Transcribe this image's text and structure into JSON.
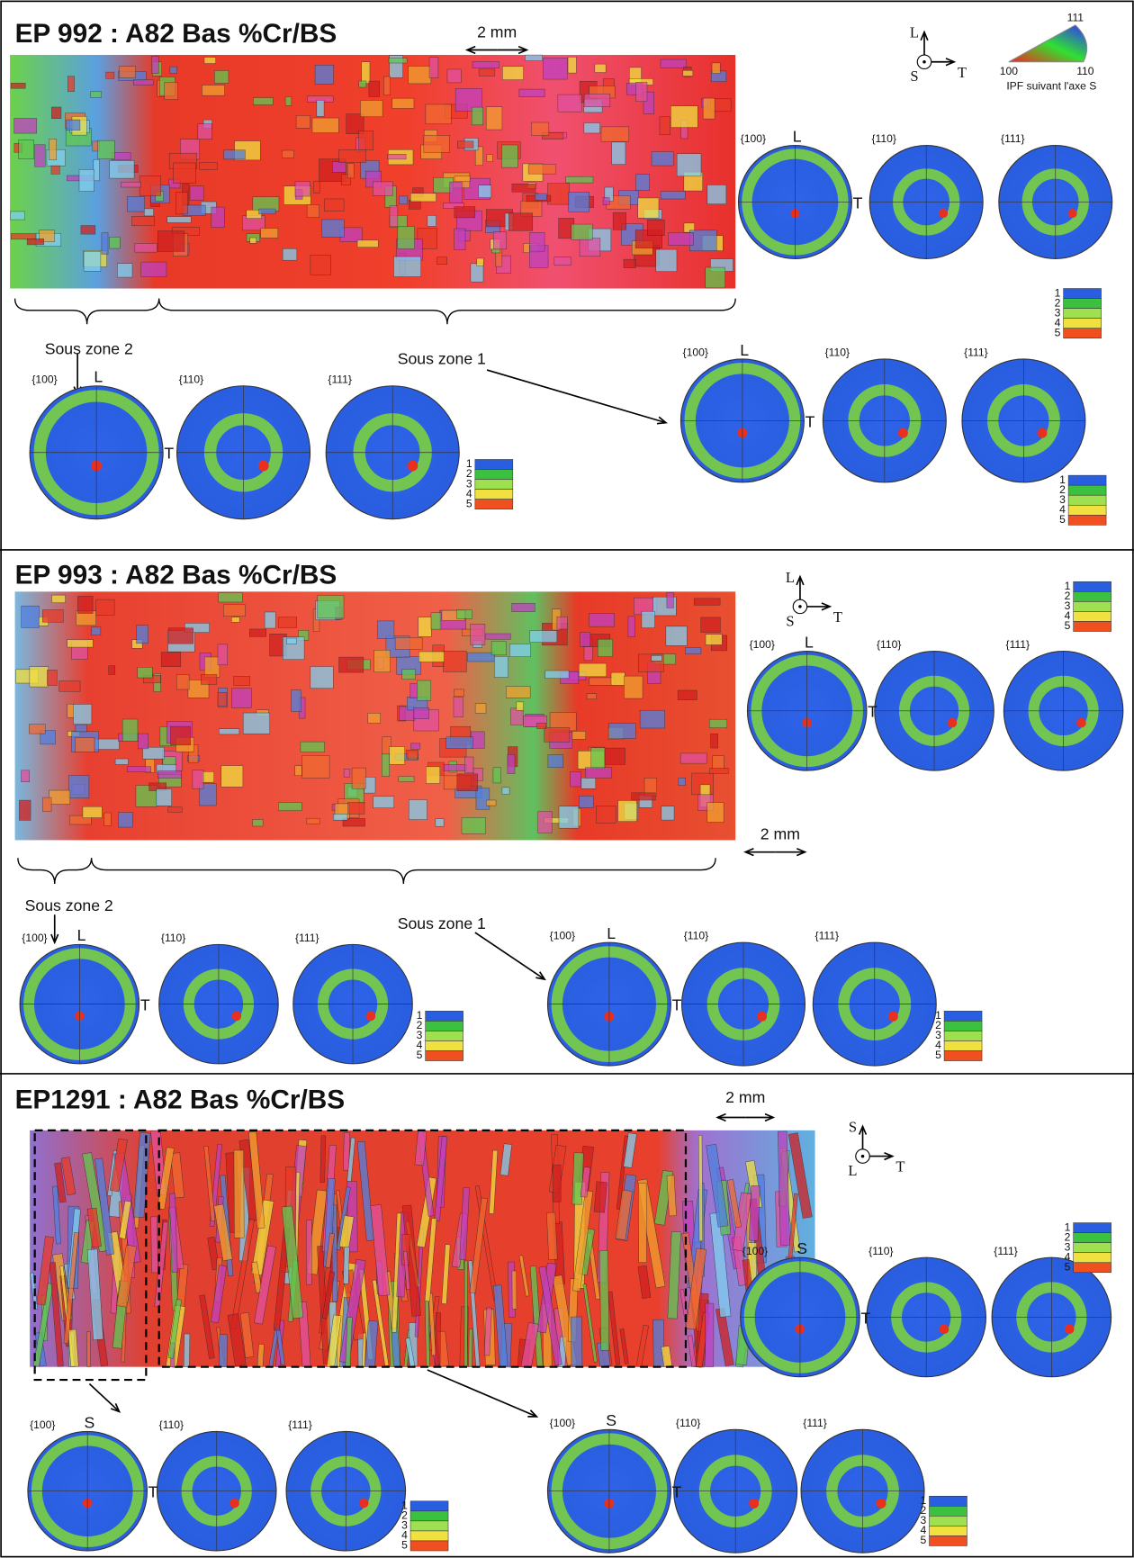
{
  "panels": [
    {
      "title": "EP 992 : A82 Bas %Cr/BS",
      "scale_bar": "2 mm",
      "axes": {
        "up": "L",
        "center": "S",
        "right": "T"
      },
      "ipf_legend": {
        "top": "111",
        "left": "100",
        "right": "110",
        "caption": "IPF suivant l'axe S"
      },
      "subzones": [
        "Sous zone 2",
        "Sous zone 1"
      ],
      "pole_figure_sets": [
        {
          "labels": [
            "{100}",
            "{110}",
            "{111}"
          ],
          "top_axis": "L",
          "side_axis": "T",
          "legend": [
            "1",
            "2",
            "3",
            "4",
            "5"
          ]
        },
        {
          "labels": [
            "{100}",
            "{110}",
            "{111}"
          ],
          "top_axis": "L",
          "side_axis": "T",
          "legend": [
            "1",
            "2",
            "3",
            "4",
            "5"
          ]
        },
        {
          "labels": [
            "{100}",
            "{110}",
            "{111}"
          ],
          "top_axis": "L",
          "side_axis": "T",
          "legend": [
            "1",
            "2",
            "3",
            "4",
            "5"
          ]
        }
      ]
    },
    {
      "title": "EP 993 : A82 Bas %Cr/BS",
      "scale_bar": "2 mm",
      "axes": {
        "up": "L",
        "center": "S",
        "right": "T"
      },
      "subzones": [
        "Sous zone 2",
        "Sous zone 1"
      ],
      "pole_figure_sets": [
        {
          "labels": [
            "{100}",
            "{110}",
            "{111}"
          ],
          "top_axis": "L",
          "side_axis": "T",
          "legend": [
            "1",
            "2",
            "3",
            "4",
            "5"
          ]
        },
        {
          "labels": [
            "{100}",
            "{110}",
            "{111}"
          ],
          "top_axis": "L",
          "side_axis": "T",
          "legend": [
            "1",
            "2",
            "3",
            "4",
            "5"
          ]
        },
        {
          "labels": [
            "{100}",
            "{110}",
            "{111}"
          ],
          "top_axis": "L",
          "side_axis": "T",
          "legend": [
            "1",
            "2",
            "3",
            "4",
            "5"
          ]
        }
      ]
    },
    {
      "title": "EP1291 : A82 Bas %Cr/BS",
      "scale_bar": "2 mm",
      "axes": {
        "up": "S",
        "center": "L",
        "right": "T"
      },
      "pole_figure_sets": [
        {
          "labels": [
            "{100}",
            "{110}",
            "{111}"
          ],
          "top_axis": "S",
          "side_axis": "T",
          "legend": [
            "1",
            "2",
            "3",
            "4",
            "5"
          ]
        },
        {
          "labels": [
            "{100}",
            "{110}",
            "{111}"
          ],
          "top_axis": "S",
          "side_axis": "T",
          "legend": [
            "1",
            "2",
            "3",
            "4",
            "5"
          ]
        },
        {
          "labels": [
            "{100}",
            "{110}",
            "{111}"
          ],
          "top_axis": "S",
          "side_axis": "T",
          "legend": [
            "1",
            "2",
            "3",
            "4",
            "5"
          ]
        }
      ]
    }
  ]
}
